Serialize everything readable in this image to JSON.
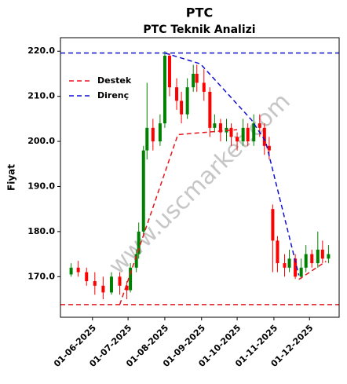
{
  "chart_data": {
    "type": "candlestick",
    "title": "PTC",
    "subtitle": "PTC Teknik Analizi",
    "y_label": "Fiyat",
    "watermark": "www.uscmarket.com",
    "legend": "upper left",
    "grid": false,
    "up_color": "#008000",
    "down_color": "#ff0000",
    "xlim": [
      "2025-05-05",
      "2025-12-26"
    ],
    "xticks": [
      {
        "value": "2025-06-01",
        "label": "01-06-2025"
      },
      {
        "value": "2025-07-01",
        "label": "01-07-2025"
      },
      {
        "value": "2025-08-01",
        "label": "01-08-2025"
      },
      {
        "value": "2025-09-01",
        "label": "01-09-2025"
      },
      {
        "value": "2025-10-01",
        "label": "01-10-2025"
      },
      {
        "value": "2025-11-01",
        "label": "01-11-2025"
      },
      {
        "value": "2025-12-01",
        "label": "01-12-2025"
      }
    ],
    "ylim": [
      161,
      223
    ],
    "yticks": [
      {
        "value": 170,
        "label": "170.0"
      },
      {
        "value": 180,
        "label": "180.0"
      },
      {
        "value": 190,
        "label": "190.0"
      },
      {
        "value": 200,
        "label": "200.0"
      },
      {
        "value": 210,
        "label": "210.0"
      },
      {
        "value": 220,
        "label": "220.0"
      }
    ],
    "candles": {
      "x": [
        "2025-05-14",
        "2025-05-20",
        "2025-05-27",
        "2025-06-03",
        "2025-06-10",
        "2025-06-17",
        "2025-06-24",
        "2025-06-30",
        "2025-07-03",
        "2025-07-08",
        "2025-07-10",
        "2025-07-14",
        "2025-07-17",
        "2025-07-22",
        "2025-07-28",
        "2025-08-01",
        "2025-08-05",
        "2025-08-11",
        "2025-08-15",
        "2025-08-20",
        "2025-08-25",
        "2025-08-28",
        "2025-09-03",
        "2025-09-08",
        "2025-09-12",
        "2025-09-17",
        "2025-09-22",
        "2025-09-26",
        "2025-10-01",
        "2025-10-06",
        "2025-10-10",
        "2025-10-15",
        "2025-10-20",
        "2025-10-24",
        "2025-10-28",
        "2025-10-31",
        "2025-11-04",
        "2025-11-10",
        "2025-11-14",
        "2025-11-19",
        "2025-11-24",
        "2025-11-28",
        "2025-12-03",
        "2025-12-08",
        "2025-12-12",
        "2025-12-17"
      ],
      "open": [
        170.5,
        172,
        171,
        169,
        168,
        166.5,
        170,
        168,
        167,
        172,
        175,
        180,
        198,
        203,
        200,
        204,
        219,
        212,
        209,
        206,
        212,
        215,
        213,
        211,
        203,
        204,
        202,
        203,
        201,
        200,
        203,
        200,
        204,
        203,
        199,
        185,
        178,
        173,
        172,
        174,
        170,
        172,
        175,
        173,
        176,
        174
      ],
      "high": [
        173,
        173.5,
        172,
        171,
        170,
        171,
        171,
        169,
        173,
        176,
        182,
        199,
        213,
        205,
        206,
        220,
        219.5,
        214,
        211,
        214,
        217,
        217,
        216,
        212,
        206,
        205,
        205,
        204,
        202,
        205,
        204,
        206,
        206,
        204,
        201,
        186,
        179,
        175,
        176,
        175,
        174,
        177,
        176,
        180,
        178,
        177
      ],
      "low": [
        170,
        170,
        168,
        166,
        165,
        166,
        166,
        165,
        166.5,
        171,
        174,
        179,
        196,
        198,
        199,
        203,
        210,
        207,
        204,
        205,
        211,
        211,
        209,
        201,
        202,
        200,
        200,
        199,
        198,
        199,
        199,
        199,
        201,
        197,
        196,
        171,
        171,
        170,
        171,
        169.5,
        169.5,
        171,
        172,
        172,
        173,
        173
      ],
      "close": [
        172,
        171,
        169,
        168,
        166.5,
        170,
        168,
        167,
        172,
        175,
        180,
        198,
        203,
        200,
        204,
        219,
        212,
        209,
        206,
        212,
        215,
        213,
        211,
        203,
        204,
        202,
        203,
        201,
        200,
        203,
        200,
        204,
        203,
        199,
        198,
        178,
        173,
        172,
        174,
        170,
        172,
        175,
        173,
        176,
        174,
        175
      ]
    },
    "series": [
      {
        "name": "Destek",
        "color": "#e8141c",
        "level": 163.8,
        "x": [
          "2025-06-24",
          "2025-08-12",
          "2025-10-01",
          null,
          "2025-11-22",
          "2025-12-15"
        ],
        "values": [
          163.8,
          201.5,
          202.6,
          null,
          169.4,
          173.4
        ]
      },
      {
        "name": "Direnç",
        "color": "#1010d0",
        "level": 219.6,
        "x": [
          "2025-08-01",
          "2025-08-31",
          "2025-10-13",
          "2025-10-25",
          "2025-11-22"
        ],
        "values": [
          219.6,
          217.2,
          204.8,
          200,
          170.3
        ]
      }
    ]
  }
}
